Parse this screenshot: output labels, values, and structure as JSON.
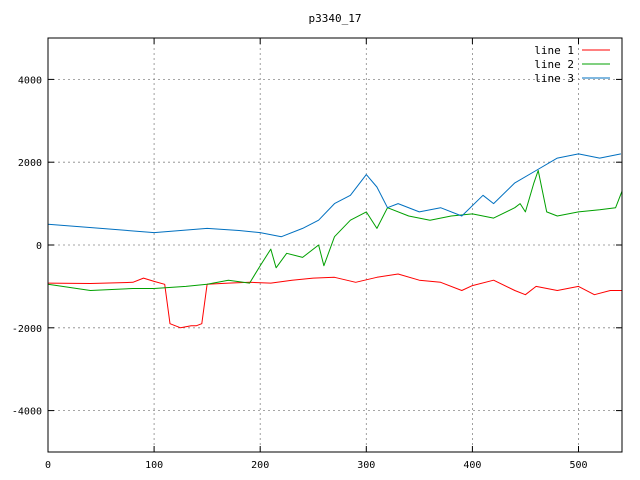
{
  "chart_data": {
    "type": "line",
    "title": "p3340_17",
    "xlabel": "",
    "ylabel": "",
    "xlim": [
      0,
      541
    ],
    "ylim": [
      -5000,
      5000
    ],
    "x_ticks": [
      0,
      100,
      200,
      300,
      400,
      500
    ],
    "y_ticks": [
      -4000,
      -2000,
      0,
      2000,
      4000
    ],
    "grid": true,
    "legend_position": "top-right",
    "series": [
      {
        "name": "line 1",
        "color": "#ff0000",
        "points": [
          [
            0,
            -920
          ],
          [
            40,
            -930
          ],
          [
            80,
            -900
          ],
          [
            90,
            -800
          ],
          [
            100,
            -880
          ],
          [
            110,
            -950
          ],
          [
            115,
            -1900
          ],
          [
            125,
            -2000
          ],
          [
            135,
            -1950
          ],
          [
            140,
            -1950
          ],
          [
            145,
            -1900
          ],
          [
            150,
            -950
          ],
          [
            170,
            -920
          ],
          [
            190,
            -900
          ],
          [
            210,
            -920
          ],
          [
            230,
            -850
          ],
          [
            250,
            -800
          ],
          [
            270,
            -780
          ],
          [
            290,
            -900
          ],
          [
            310,
            -780
          ],
          [
            330,
            -700
          ],
          [
            350,
            -850
          ],
          [
            370,
            -900
          ],
          [
            390,
            -1100
          ],
          [
            400,
            -980
          ],
          [
            420,
            -850
          ],
          [
            440,
            -1100
          ],
          [
            450,
            -1200
          ],
          [
            460,
            -1000
          ],
          [
            480,
            -1100
          ],
          [
            500,
            -1000
          ],
          [
            515,
            -1200
          ],
          [
            530,
            -1100
          ],
          [
            541,
            -1100
          ]
        ]
      },
      {
        "name": "line 2",
        "color": "#00a000",
        "points": [
          [
            0,
            -950
          ],
          [
            40,
            -1100
          ],
          [
            80,
            -1050
          ],
          [
            100,
            -1050
          ],
          [
            130,
            -1000
          ],
          [
            150,
            -950
          ],
          [
            170,
            -850
          ],
          [
            190,
            -920
          ],
          [
            200,
            -500
          ],
          [
            210,
            -100
          ],
          [
            215,
            -550
          ],
          [
            225,
            -200
          ],
          [
            240,
            -300
          ],
          [
            255,
            0
          ],
          [
            260,
            -500
          ],
          [
            270,
            200
          ],
          [
            285,
            600
          ],
          [
            300,
            800
          ],
          [
            310,
            400
          ],
          [
            320,
            900
          ],
          [
            340,
            700
          ],
          [
            360,
            600
          ],
          [
            380,
            700
          ],
          [
            400,
            750
          ],
          [
            420,
            650
          ],
          [
            440,
            900
          ],
          [
            445,
            1000
          ],
          [
            450,
            800
          ],
          [
            458,
            1500
          ],
          [
            462,
            1800
          ],
          [
            470,
            800
          ],
          [
            480,
            700
          ],
          [
            500,
            800
          ],
          [
            520,
            850
          ],
          [
            535,
            900
          ],
          [
            541,
            1300
          ]
        ]
      },
      {
        "name": "line 3",
        "color": "#0070c0",
        "points": [
          [
            0,
            500
          ],
          [
            50,
            400
          ],
          [
            100,
            300
          ],
          [
            150,
            400
          ],
          [
            180,
            350
          ],
          [
            200,
            300
          ],
          [
            220,
            200
          ],
          [
            240,
            400
          ],
          [
            255,
            600
          ],
          [
            270,
            1000
          ],
          [
            285,
            1200
          ],
          [
            300,
            1700
          ],
          [
            310,
            1400
          ],
          [
            320,
            900
          ],
          [
            330,
            1000
          ],
          [
            350,
            800
          ],
          [
            370,
            900
          ],
          [
            390,
            700
          ],
          [
            410,
            1200
          ],
          [
            420,
            1000
          ],
          [
            440,
            1500
          ],
          [
            460,
            1800
          ],
          [
            480,
            2100
          ],
          [
            500,
            2200
          ],
          [
            520,
            2100
          ],
          [
            540,
            2200
          ]
        ]
      }
    ]
  }
}
